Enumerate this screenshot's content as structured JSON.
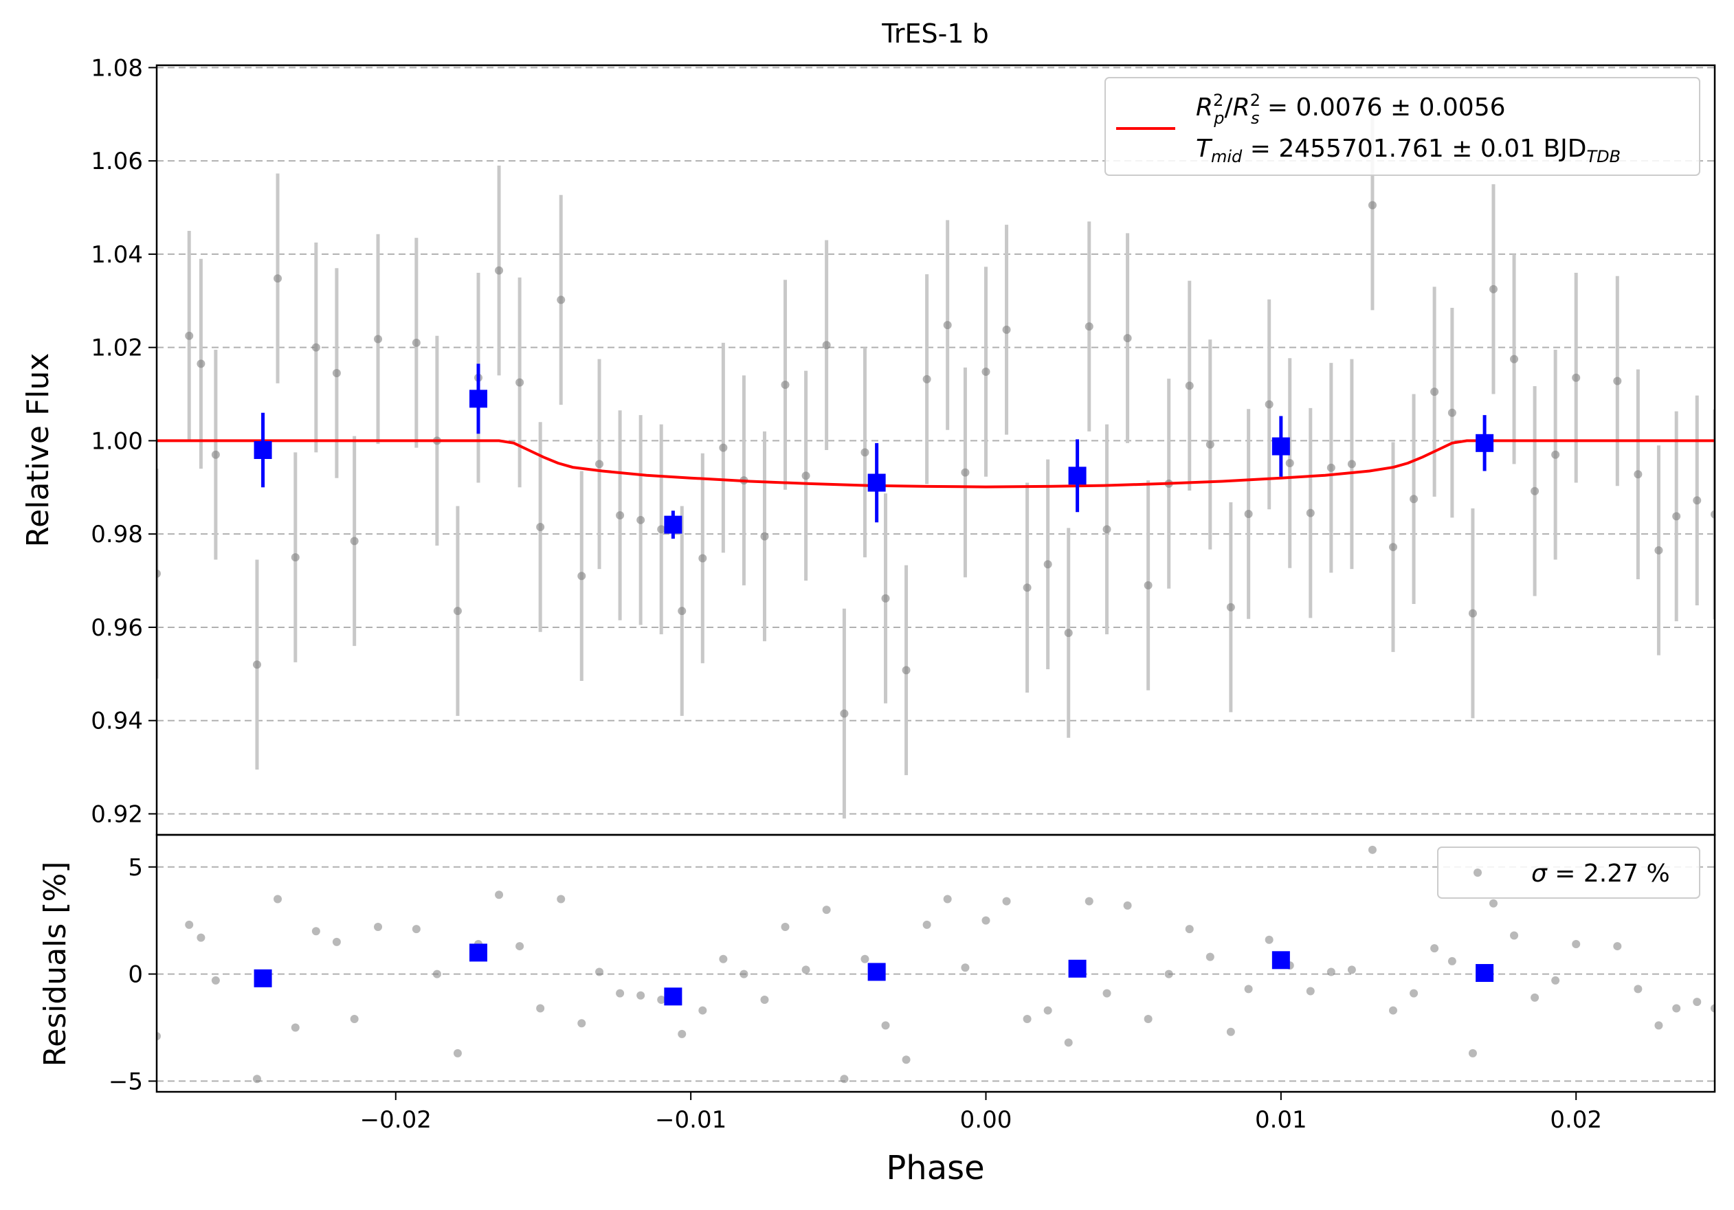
{
  "title": "TrES-1 b",
  "top_panel": {
    "ylabel": "Relative Flux",
    "yticks": [
      "0.92",
      "0.94",
      "0.96",
      "0.98",
      "1.00",
      "1.02",
      "1.04",
      "1.06",
      "1.08"
    ],
    "legend": {
      "line1_main": "R",
      "line1_text": "R²p/R²s = 0.0076 ± 0.0056",
      "line2_text": "Tmid = 2455701.761 ± 0.01 BJDTDB",
      "line1_rest": " = 0.0076 ± 0.0056",
      "line2_rest": " = 2455701.761 ± 0.01 BJD",
      "line2_sub": "TDB",
      "t_sub": "mid"
    }
  },
  "bottom_panel": {
    "ylabel": "Residuals [%]",
    "yticks": [
      "−5",
      "0",
      "5"
    ],
    "legend": {
      "text_rest": " = 2.27 %",
      "sigma": "σ"
    }
  },
  "xlabel": "Phase",
  "xticks": [
    "−0.02",
    "−0.01",
    "0.00",
    "0.01",
    "0.02"
  ],
  "colors": {
    "raw": "#808080",
    "raw_err": "#c8c8c8",
    "binned": "#0000ff",
    "model": "#ff0000",
    "grid": "#b0b0b0"
  },
  "chart_data": {
    "type": "scatter",
    "x_range": [
      -0.0281,
      0.0247
    ],
    "flux_range": [
      0.9155,
      1.0805
    ],
    "resid_range": [
      -5.5,
      6.5
    ],
    "raw_error": 0.0225,
    "raw_points": [
      [
        -0.0281,
        0.9715
      ],
      [
        -0.027,
        1.0225
      ],
      [
        -0.0266,
        1.0165
      ],
      [
        -0.0261,
        0.997
      ],
      [
        -0.0247,
        0.952
      ],
      [
        -0.024,
        1.0348
      ],
      [
        -0.0234,
        0.975
      ],
      [
        -0.0227,
        1.02
      ],
      [
        -0.022,
        1.0145
      ],
      [
        -0.0214,
        0.9785
      ],
      [
        -0.0206,
        1.0218
      ],
      [
        -0.0193,
        1.021
      ],
      [
        -0.0186,
        1.0
      ],
      [
        -0.0179,
        0.9635
      ],
      [
        -0.0172,
        1.0135
      ],
      [
        -0.0165,
        1.0365
      ],
      [
        -0.0158,
        1.0125
      ],
      [
        -0.0151,
        0.9815
      ],
      [
        -0.0144,
        1.0302
      ],
      [
        -0.0137,
        0.971
      ],
      [
        -0.0131,
        0.995
      ],
      [
        -0.0124,
        0.984
      ],
      [
        -0.0117,
        0.983
      ],
      [
        -0.011,
        0.981
      ],
      [
        -0.0103,
        0.9635
      ],
      [
        -0.0096,
        0.9748
      ],
      [
        -0.0089,
        0.9985
      ],
      [
        -0.0082,
        0.9915
      ],
      [
        -0.0075,
        0.9795
      ],
      [
        -0.0068,
        1.012
      ],
      [
        -0.0061,
        0.9925
      ],
      [
        -0.0054,
        1.0205
      ],
      [
        -0.0048,
        0.9415
      ],
      [
        -0.0041,
        0.9975
      ],
      [
        -0.0034,
        0.9662
      ],
      [
        -0.0027,
        0.9508
      ],
      [
        -0.002,
        1.0132
      ],
      [
        -0.0013,
        1.0248
      ],
      [
        -0.0007,
        0.9932
      ],
      [
        0.0,
        1.0148
      ],
      [
        0.0007,
        1.0238
      ],
      [
        0.0014,
        0.9685
      ],
      [
        0.0021,
        0.9735
      ],
      [
        0.0028,
        0.9588
      ],
      [
        0.0035,
        1.0245
      ],
      [
        0.0041,
        0.981
      ],
      [
        0.0048,
        1.022
      ],
      [
        0.0055,
        0.969
      ],
      [
        0.0062,
        0.9908
      ],
      [
        0.0069,
        1.0118
      ],
      [
        0.0076,
        0.9992
      ],
      [
        0.0083,
        0.9643
      ],
      [
        0.0089,
        0.9843
      ],
      [
        0.0096,
        1.0078
      ],
      [
        0.0103,
        0.9952
      ],
      [
        0.011,
        0.9845
      ],
      [
        0.0117,
        0.9942
      ],
      [
        0.0124,
        0.995
      ],
      [
        0.0131,
        1.0505
      ],
      [
        0.0138,
        0.9772
      ],
      [
        0.0145,
        0.9875
      ],
      [
        0.0152,
        1.0105
      ],
      [
        0.0158,
        1.006
      ],
      [
        0.0165,
        0.963
      ],
      [
        0.0172,
        1.0325
      ],
      [
        0.0179,
        1.0175
      ],
      [
        0.0186,
        0.9892
      ],
      [
        0.0193,
        0.997
      ],
      [
        0.02,
        1.0135
      ],
      [
        0.0214,
        1.0128
      ],
      [
        0.0221,
        0.9928
      ],
      [
        0.0228,
        0.9765
      ],
      [
        0.0234,
        0.9838
      ],
      [
        0.0241,
        0.9872
      ],
      [
        0.0247,
        0.9842
      ]
    ],
    "raw_residuals": [
      [
        -0.0281,
        -2.9
      ],
      [
        -0.027,
        2.3
      ],
      [
        -0.0266,
        1.7
      ],
      [
        -0.0261,
        -0.3
      ],
      [
        -0.0247,
        -4.9
      ],
      [
        -0.024,
        3.5
      ],
      [
        -0.0234,
        -2.5
      ],
      [
        -0.0227,
        2.0
      ],
      [
        -0.022,
        1.5
      ],
      [
        -0.0214,
        -2.1
      ],
      [
        -0.0206,
        2.2
      ],
      [
        -0.0193,
        2.1
      ],
      [
        -0.0186,
        0.0
      ],
      [
        -0.0179,
        -3.7
      ],
      [
        -0.0172,
        1.4
      ],
      [
        -0.0165,
        3.7
      ],
      [
        -0.0158,
        1.3
      ],
      [
        -0.0151,
        -1.6
      ],
      [
        -0.0144,
        3.5
      ],
      [
        -0.0137,
        -2.3
      ],
      [
        -0.0131,
        0.1
      ],
      [
        -0.0124,
        -0.9
      ],
      [
        -0.0117,
        -1.0
      ],
      [
        -0.011,
        -1.2
      ],
      [
        -0.0103,
        -2.8
      ],
      [
        -0.0096,
        -1.7
      ],
      [
        -0.0089,
        0.7
      ],
      [
        -0.0082,
        0.0
      ],
      [
        -0.0075,
        -1.2
      ],
      [
        -0.0068,
        2.2
      ],
      [
        -0.0061,
        0.2
      ],
      [
        -0.0054,
        3.0
      ],
      [
        -0.0048,
        -4.9
      ],
      [
        -0.0041,
        0.7
      ],
      [
        -0.0034,
        -2.4
      ],
      [
        -0.0027,
        -4.0
      ],
      [
        -0.002,
        2.3
      ],
      [
        -0.0013,
        3.5
      ],
      [
        -0.0007,
        0.3
      ],
      [
        0.0,
        2.5
      ],
      [
        0.0007,
        3.4
      ],
      [
        0.0014,
        -2.1
      ],
      [
        0.0021,
        -1.7
      ],
      [
        0.0028,
        -3.2
      ],
      [
        0.0035,
        3.4
      ],
      [
        0.0041,
        -0.9
      ],
      [
        0.0048,
        3.2
      ],
      [
        0.0055,
        -2.1
      ],
      [
        0.0062,
        0.0
      ],
      [
        0.0069,
        2.1
      ],
      [
        0.0076,
        0.8
      ],
      [
        0.0083,
        -2.7
      ],
      [
        0.0089,
        -0.7
      ],
      [
        0.0096,
        1.6
      ],
      [
        0.0103,
        0.4
      ],
      [
        0.011,
        -0.8
      ],
      [
        0.0117,
        0.1
      ],
      [
        0.0124,
        0.2
      ],
      [
        0.0131,
        5.8
      ],
      [
        0.0138,
        -1.7
      ],
      [
        0.0145,
        -0.9
      ],
      [
        0.0152,
        1.2
      ],
      [
        0.0158,
        0.6
      ],
      [
        0.0165,
        -3.7
      ],
      [
        0.0172,
        3.3
      ],
      [
        0.0179,
        1.8
      ],
      [
        0.0186,
        -1.1
      ],
      [
        0.0193,
        -0.3
      ],
      [
        0.02,
        1.4
      ],
      [
        0.0214,
        1.3
      ],
      [
        0.0221,
        -0.7
      ],
      [
        0.0228,
        -2.4
      ],
      [
        0.0234,
        -1.6
      ],
      [
        0.0241,
        -1.3
      ],
      [
        0.0247,
        -1.6
      ]
    ],
    "binned_points": [
      [
        -0.0245,
        0.998,
        0.008
      ],
      [
        -0.0172,
        1.009,
        0.0075
      ],
      [
        -0.0106,
        0.982,
        0.003
      ],
      [
        -0.0037,
        0.991,
        0.0085
      ],
      [
        0.0031,
        0.9925,
        0.0078
      ],
      [
        0.01,
        0.9988,
        0.0065
      ],
      [
        0.0169,
        0.9995,
        0.006
      ]
    ],
    "binned_residuals": [
      [
        -0.0245,
        -0.2
      ],
      [
        -0.0172,
        1.0
      ],
      [
        -0.0106,
        -1.05
      ],
      [
        -0.0037,
        0.1
      ],
      [
        0.0031,
        0.25
      ],
      [
        0.01,
        0.65
      ],
      [
        0.0169,
        0.05
      ]
    ],
    "model_curve": [
      [
        -0.0281,
        1.0
      ],
      [
        -0.0165,
        1.0
      ],
      [
        -0.016,
        0.9995
      ],
      [
        -0.0155,
        0.998
      ],
      [
        -0.015,
        0.9965
      ],
      [
        -0.0145,
        0.9952
      ],
      [
        -0.014,
        0.9943
      ],
      [
        -0.013,
        0.9935
      ],
      [
        -0.0115,
        0.9926
      ],
      [
        -0.01,
        0.992
      ],
      [
        -0.008,
        0.9913
      ],
      [
        -0.006,
        0.9908
      ],
      [
        -0.004,
        0.9904
      ],
      [
        -0.002,
        0.9902
      ],
      [
        0.0,
        0.9901
      ],
      [
        0.002,
        0.9902
      ],
      [
        0.004,
        0.9904
      ],
      [
        0.006,
        0.9908
      ],
      [
        0.008,
        0.9913
      ],
      [
        0.01,
        0.992
      ],
      [
        0.0115,
        0.9926
      ],
      [
        0.013,
        0.9935
      ],
      [
        0.0138,
        0.9943
      ],
      [
        0.0143,
        0.9952
      ],
      [
        0.0148,
        0.9965
      ],
      [
        0.0153,
        0.998
      ],
      [
        0.0158,
        0.9995
      ],
      [
        0.0163,
        1.0
      ],
      [
        0.0247,
        1.0
      ]
    ]
  }
}
